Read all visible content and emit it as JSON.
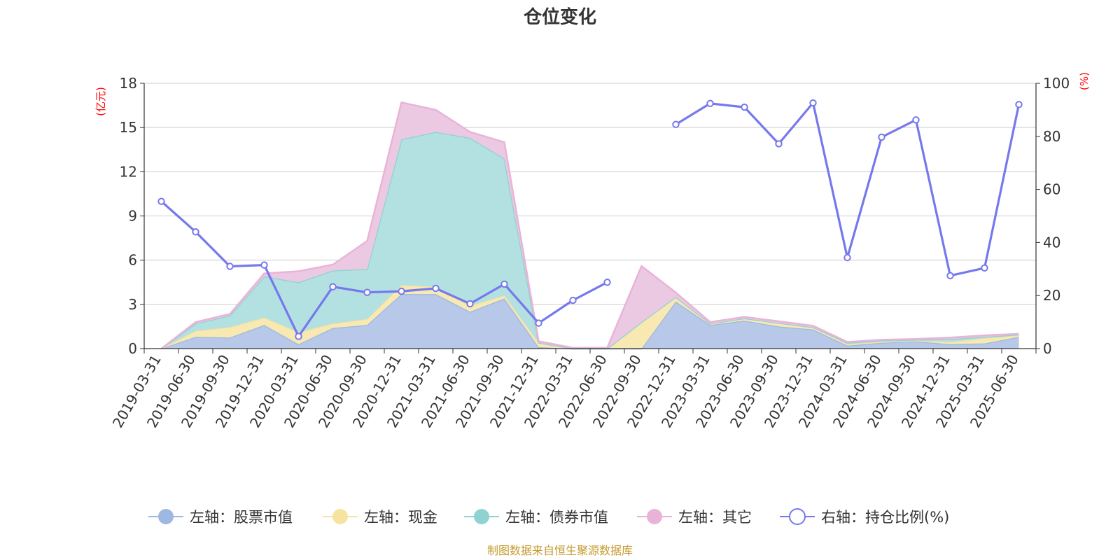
{
  "chart_data": {
    "type": "area",
    "title": "仓位变化",
    "source": "制图数据来自恒生聚源数据库",
    "left_axis": {
      "unit": "(亿元)",
      "ticks": [
        0,
        3,
        6,
        9,
        12,
        15,
        18
      ],
      "range": [
        0,
        18
      ]
    },
    "right_axis": {
      "unit": "(%)",
      "ticks": [
        0,
        20,
        40,
        60,
        80,
        100
      ],
      "range": [
        0,
        100
      ]
    },
    "x_categories": [
      "2019-03-31",
      "2019-06-30",
      "2019-09-30",
      "2019-12-31",
      "2020-03-31",
      "2020-06-30",
      "2020-09-30",
      "2020-12-31",
      "2021-03-31",
      "2021-06-30",
      "2021-09-30",
      "2021-12-31",
      "2022-03-31",
      "2022-06-30",
      "2022-09-30",
      "2022-12-31",
      "2023-03-31",
      "2023-06-30",
      "2023-09-30",
      "2023-12-31",
      "2024-03-31",
      "2024-06-30",
      "2024-09-30",
      "2024-12-31",
      "2025-03-31",
      "2025-06-30"
    ],
    "series": [
      {
        "name": "左轴：股票市值",
        "axis": "left",
        "kind": "stacked-area",
        "color": "#9db8e3",
        "fill": "#b7c8e8",
        "values": [
          0.0,
          0.8,
          0.75,
          1.6,
          0.3,
          1.4,
          1.6,
          3.7,
          3.7,
          2.5,
          3.4,
          0.1,
          0.0,
          0.0,
          0.0,
          3.2,
          1.6,
          1.9,
          1.5,
          1.3,
          0.2,
          0.4,
          0.5,
          0.3,
          0.35,
          0.8
        ]
      },
      {
        "name": "左轴：现金",
        "axis": "left",
        "kind": "stacked-area",
        "color": "#f7e3a0",
        "fill": "#f8e8b2",
        "values": [
          0.0,
          0.4,
          0.7,
          0.5,
          0.8,
          0.3,
          0.4,
          0.6,
          0.5,
          0.4,
          0.2,
          0.3,
          0.0,
          0.0,
          1.8,
          0.3,
          0.1,
          0.15,
          0.25,
          0.15,
          0.1,
          0.05,
          0.05,
          0.15,
          0.35,
          0.1
        ]
      },
      {
        "name": "左轴：债券市值",
        "axis": "left",
        "kind": "stacked-area",
        "color": "#8fd2d2",
        "fill": "#b3e0e0",
        "values": [
          0.0,
          0.5,
          0.8,
          2.8,
          3.4,
          3.6,
          3.4,
          9.9,
          10.5,
          11.4,
          9.3,
          0.0,
          0.0,
          0.0,
          0.0,
          0.0,
          0.0,
          0.0,
          0.0,
          0.0,
          0.1,
          0.1,
          0.05,
          0.2,
          0.1,
          0.05
        ]
      },
      {
        "name": "左轴：其它",
        "axis": "left",
        "kind": "stacked-area",
        "color": "#e9b3d8",
        "fill": "#ecc9e2",
        "values": [
          0.0,
          0.1,
          0.1,
          0.2,
          0.75,
          0.4,
          1.9,
          2.5,
          1.5,
          0.4,
          1.1,
          0.1,
          0.05,
          0.05,
          3.8,
          0.3,
          0.1,
          0.1,
          0.1,
          0.1,
          0.05,
          0.05,
          0.05,
          0.1,
          0.1,
          0.05
        ]
      },
      {
        "name": "右轴：持仓比例(%)",
        "axis": "right",
        "kind": "line",
        "color": "#7678ed",
        "values": [
          55.5,
          44.0,
          31.0,
          31.5,
          4.6,
          23.3,
          21.2,
          21.6,
          22.7,
          16.9,
          24.3,
          9.6,
          18.2,
          25.0,
          null,
          84.5,
          92.4,
          91.0,
          77.2,
          92.6,
          34.3,
          79.7,
          86.2,
          27.5,
          30.4,
          92.0
        ]
      }
    ]
  }
}
